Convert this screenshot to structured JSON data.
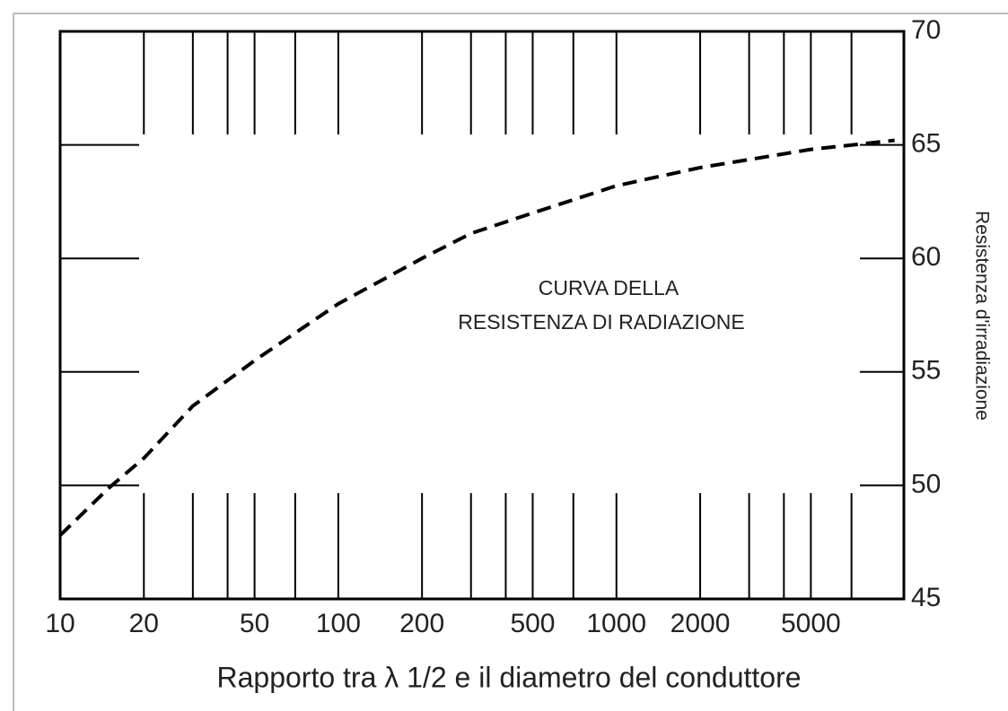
{
  "chart_data": {
    "type": "line",
    "annotation": [
      "CURVA DELLA",
      "RESISTENZA DI RADIAZIONE"
    ],
    "x_label": "Rapporto tra λ 1/2 e il diametro del conduttore",
    "y_label": "Resistenza d'irradiazione",
    "x": [
      10,
      15,
      20,
      30,
      50,
      100,
      200,
      300,
      500,
      1000,
      2000,
      5000,
      10000
    ],
    "series": [
      {
        "name": "Resistenza di radiazione",
        "color": "#000000",
        "values": [
          47.8,
          49.9,
          51.2,
          53.5,
          55.5,
          58.0,
          60.0,
          61.1,
          62.0,
          63.2,
          64.0,
          64.8,
          65.2
        ]
      }
    ],
    "xscale": "log",
    "xlim": [
      10,
      10800
    ],
    "xticks": [
      10,
      20,
      50,
      100,
      200,
      500,
      1000,
      2000,
      5000
    ],
    "x_minor_ticks": [
      30,
      40,
      70,
      300,
      400,
      700,
      3000,
      4000,
      7000
    ],
    "ylim": [
      45,
      70
    ],
    "yticks": [
      45,
      50,
      55,
      60,
      65,
      70
    ],
    "y_axis_side": "right"
  }
}
